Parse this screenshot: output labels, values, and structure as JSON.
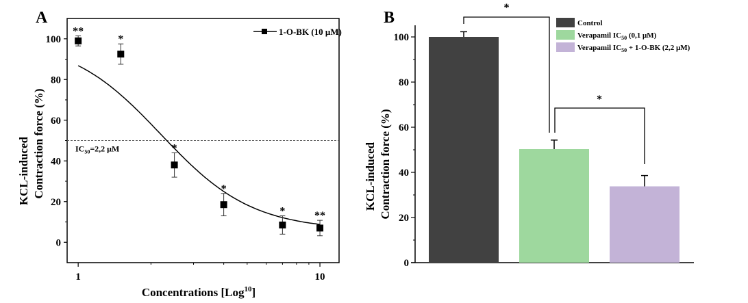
{
  "chart_data": [
    {
      "panel": "A",
      "type": "line",
      "title": "",
      "xlabel": "Concentrations [Log",
      "xlabel_superscript": "10",
      "xlabel_suffix": "]",
      "ylabel_line1": "KCL-induced",
      "ylabel_line2": "Contraction force (%)",
      "xscale": "log",
      "xlim": [
        0.9,
        12
      ],
      "ylim": [
        -10,
        110
      ],
      "xticks": [
        1,
        10
      ],
      "xtick_labels": [
        "1",
        "10"
      ],
      "xminor_ticks": [
        2,
        3,
        4,
        5,
        6,
        7,
        8,
        9
      ],
      "yticks": [
        0,
        20,
        40,
        60,
        80,
        100
      ],
      "ytick_labels": [
        "0",
        "20",
        "40",
        "60",
        "80",
        "100"
      ],
      "legend": {
        "label": "1-O-BK  (10 μM)",
        "position": "top-right"
      },
      "series": [
        {
          "name": "1-O-BK  (10 μM)",
          "x": [
            1,
            1.5,
            2.5,
            4,
            7,
            10
          ],
          "y": [
            99,
            92.5,
            38,
            18.5,
            8.5,
            7
          ],
          "err": [
            2.5,
            5,
            6,
            5.5,
            4.5,
            3.8
          ],
          "significance": [
            "**",
            "*",
            "*",
            "*",
            "*",
            "**"
          ]
        }
      ],
      "fit": {
        "type": "sigmoidal",
        "top": 100,
        "bottom": 6,
        "ic50": 2.2,
        "hill": 2.3
      },
      "reference_line": {
        "y": 50,
        "style": "dashed"
      },
      "annotation": {
        "prefix": "IC",
        "subscript": "50",
        "suffix": "=2,2 μM"
      }
    },
    {
      "panel": "B",
      "type": "bar",
      "title": "",
      "xlabel": "",
      "ylabel_line1": "KCL-induced",
      "ylabel_line2": "Contraction force (%)",
      "ylim": [
        0,
        105
      ],
      "yticks": [
        0,
        20,
        40,
        60,
        80,
        100
      ],
      "ytick_labels": [
        "0",
        "20",
        "40",
        "60",
        "80",
        "100"
      ],
      "categories": [
        "Control",
        "Verapamil IC50 (0,1 μM)",
        "Verapamil IC50 + 1-O-BK (2,2 μM)"
      ],
      "values": [
        100,
        50.3,
        33.8
      ],
      "err": [
        2.3,
        4,
        4.8
      ],
      "colors": [
        "#414141",
        "#9ED89E",
        "#C3B3D7"
      ],
      "legend": {
        "position": "top-right",
        "items": [
          {
            "text": "Control",
            "sub": "",
            "rest": ""
          },
          {
            "text": "Verapamil IC",
            "sub": "50",
            "rest": " (0,1 μM)"
          },
          {
            "text": "Verapamil IC",
            "sub": "50",
            "rest": " + 1-O-BK (2,2 μM)"
          }
        ]
      },
      "significance_brackets": [
        {
          "from": 0,
          "to": 1,
          "label": "*"
        },
        {
          "from": 1,
          "to": 2,
          "label": "*"
        }
      ]
    }
  ],
  "panel_labels": [
    "A",
    "B"
  ]
}
